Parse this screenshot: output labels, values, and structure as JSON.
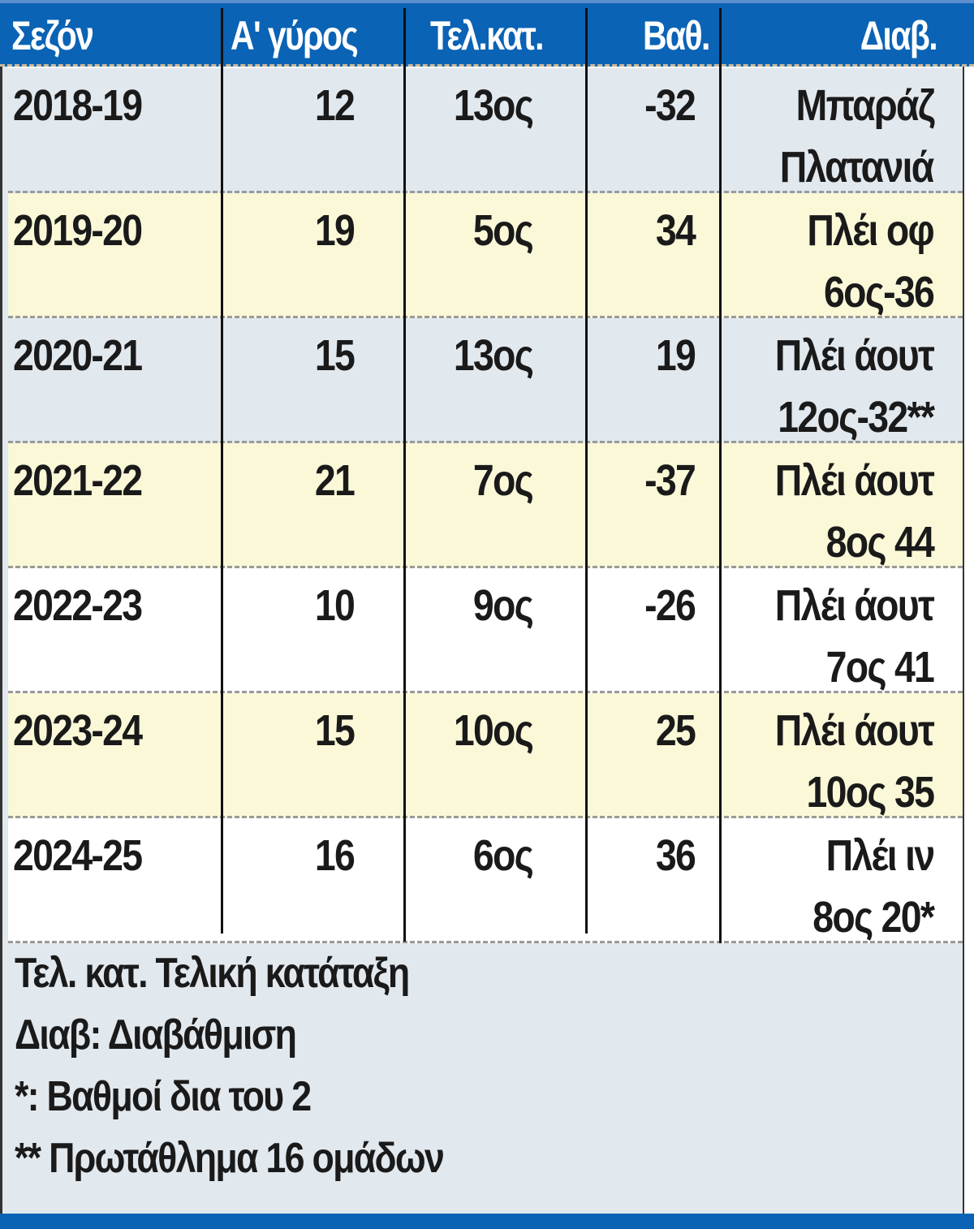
{
  "colors": {
    "header_bg": "#0a63b5",
    "row_grey": "#e1e8ee",
    "row_yellow": "#fbf8d8",
    "row_white": "#ffffff",
    "text": "#1a1a1a"
  },
  "table": {
    "headers": [
      "Σεζόν",
      "Α' γύρος",
      "Τελ.κατ.",
      "Βαθ.",
      "Διαβ."
    ],
    "rows": [
      {
        "season": "2018-19",
        "first_round": "12",
        "final_rank": "13ος",
        "points": "-32",
        "promo_1": "Μπαράζ",
        "promo_2": "Πλατανιά",
        "bg": "#e1e8ee"
      },
      {
        "season": "2019-20",
        "first_round": "19",
        "final_rank": "5ος",
        "points": "34",
        "promo_1": "Πλέι οφ",
        "promo_2": "6ος-36",
        "bg": "#fbf8d8"
      },
      {
        "season": "2020-21",
        "first_round": "15",
        "final_rank": "13ος",
        "points": "19",
        "promo_1": "Πλέι άουτ",
        "promo_2": "12ος-32**",
        "bg": "#e1e8ee"
      },
      {
        "season": "2021-22",
        "first_round": "21",
        "final_rank": "7ος",
        "points": "-37",
        "promo_1": "Πλέι άουτ",
        "promo_2": "8ος 44",
        "bg": "#fbf8d8"
      },
      {
        "season": "2022-23",
        "first_round": "10",
        "final_rank": "9ος",
        "points": "-26",
        "promo_1": "Πλέι άουτ",
        "promo_2": "7ος 41",
        "bg": "#ffffff"
      },
      {
        "season": "2023-24",
        "first_round": "15",
        "final_rank": "10ος",
        "points": "25",
        "promo_1": "Πλέι άουτ",
        "promo_2": "10ος 35",
        "bg": "#fbf8d8"
      },
      {
        "season": "2024-25",
        "first_round": "16",
        "final_rank": "6ος",
        "points": "36",
        "promo_1": "Πλέι ιν",
        "promo_2": "8ος 20*",
        "bg": "#ffffff"
      }
    ]
  },
  "notes": [
    "Τελ. κατ. Τελική κατάταξη",
    "Διαβ: Διαβάθμιση",
    "*: Βαθμοί δια του 2",
    "** Πρωτάθλημα 16 ομάδων"
  ]
}
